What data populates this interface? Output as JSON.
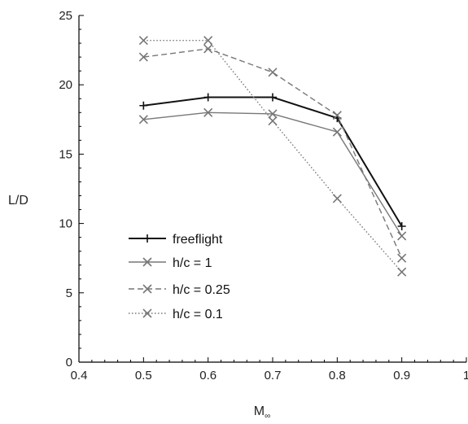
{
  "chart_data": {
    "type": "line",
    "title": "",
    "xlabel": "M",
    "xlabel_subscript": "∞",
    "ylabel": "L/D",
    "xlim": [
      0.4,
      1
    ],
    "ylim": [
      0,
      25
    ],
    "x_ticks": [
      0.4,
      0.5,
      0.6,
      0.7,
      0.8,
      0.9,
      1
    ],
    "x_tick_labels": [
      "0.4",
      "0.5",
      "0.6",
      "0.7",
      "0.8",
      "0.9",
      "1"
    ],
    "y_ticks": [
      0,
      5,
      10,
      15,
      20,
      25
    ],
    "y_tick_labels": [
      "0",
      "5",
      "10",
      "15",
      "20",
      "25"
    ],
    "grid": false,
    "legend_position": "bottom-left",
    "series": [
      {
        "name": "freeflight",
        "marker": "plus",
        "line": "solid",
        "color": "#111111",
        "x": [
          0.5,
          0.6,
          0.7,
          0.8,
          0.9
        ],
        "y": [
          18.5,
          19.1,
          19.1,
          17.6,
          9.8
        ]
      },
      {
        "name": "h/c = 1",
        "marker": "cross",
        "line": "solid",
        "color": "#777777",
        "x": [
          0.5,
          0.6,
          0.7,
          0.8,
          0.9
        ],
        "y": [
          17.5,
          18.0,
          17.9,
          16.6,
          9.1
        ]
      },
      {
        "name": "h/c = 0.25",
        "marker": "cross",
        "line": "dashed",
        "color": "#777777",
        "x": [
          0.5,
          0.6,
          0.7,
          0.8,
          0.9
        ],
        "y": [
          22.0,
          22.6,
          20.9,
          17.8,
          7.5
        ]
      },
      {
        "name": "h/c = 0.1",
        "marker": "cross",
        "line": "dotted",
        "color": "#777777",
        "x": [
          0.5,
          0.6,
          0.7,
          0.8,
          0.9
        ],
        "y": [
          23.2,
          23.2,
          17.4,
          11.8,
          6.5
        ]
      }
    ]
  }
}
